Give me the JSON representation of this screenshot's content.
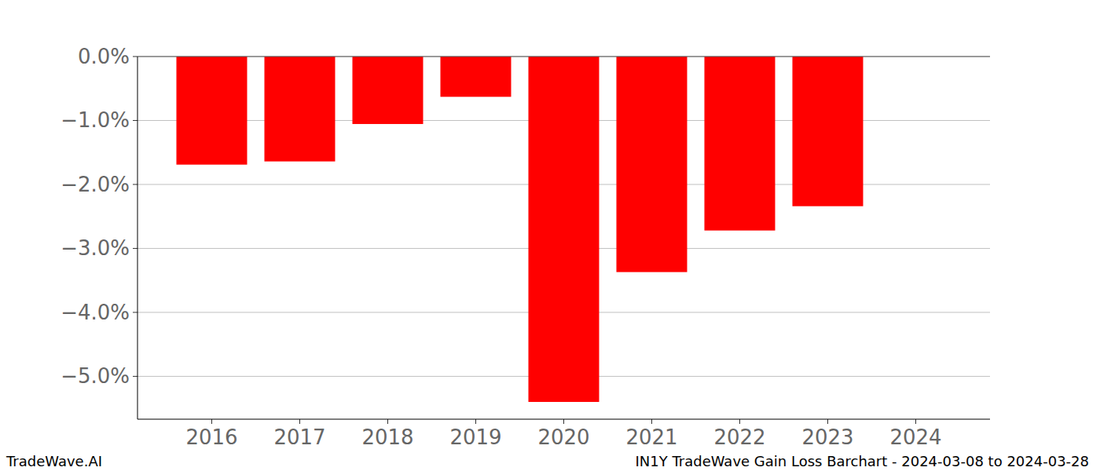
{
  "chart_data": {
    "type": "bar",
    "title": "IN1Y TradeWave Gain Loss Barchart - 2024-03-08 to 2024-03-28",
    "annotations": [
      "TradeWave.AI"
    ],
    "categories": [
      "2016",
      "2017",
      "2018",
      "2019",
      "2020",
      "2021",
      "2022",
      "2023",
      "2024"
    ],
    "values": [
      -1.69,
      -1.64,
      -1.055,
      -0.63,
      -5.4,
      -3.37,
      -2.72,
      -2.34,
      null
    ],
    "color": "#ff0000",
    "ylim": [
      -5.67,
      0
    ],
    "yticks": [
      {
        "value": 0,
        "label": "0.0%"
      },
      {
        "value": -1,
        "label": "−1.0%"
      },
      {
        "value": -2,
        "label": "−2.0%"
      },
      {
        "value": -3,
        "label": "−3.0%"
      },
      {
        "value": -4,
        "label": "−4.0%"
      },
      {
        "value": -5,
        "label": "−5.0%"
      }
    ],
    "grid": true
  }
}
